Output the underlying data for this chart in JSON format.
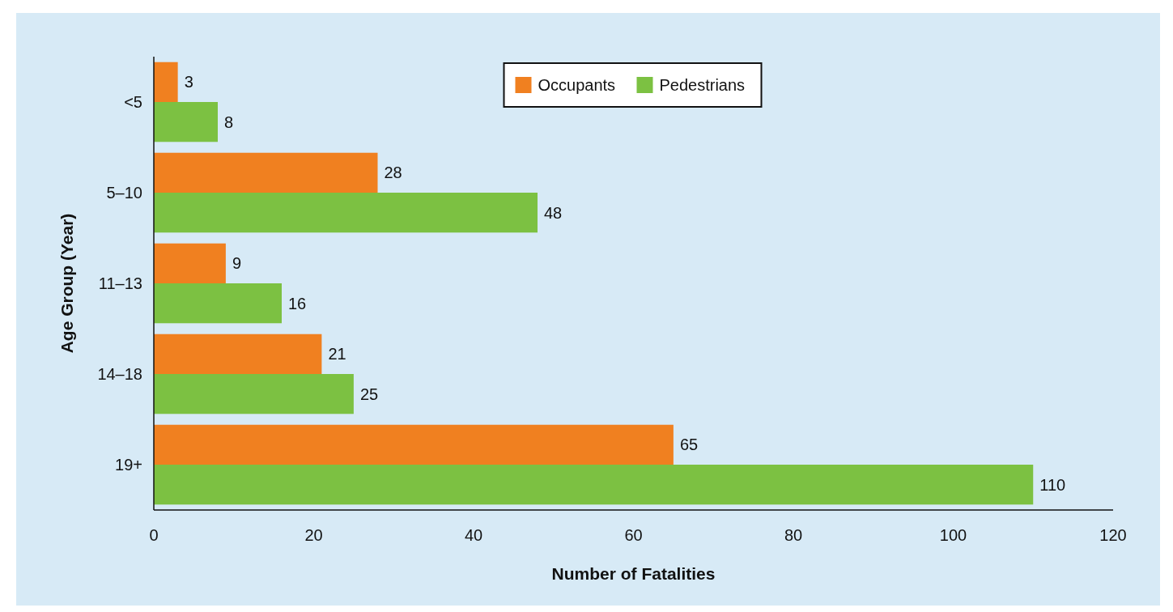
{
  "chart_data": {
    "type": "bar",
    "orientation": "horizontal",
    "xlabel": "Number of Fatalities",
    "ylabel": "Age Group (Year)",
    "categories": [
      "<5",
      "5–10",
      "11–13",
      "14–18",
      "19+"
    ],
    "series": [
      {
        "name": "Occupants",
        "color": "#f08020",
        "values": [
          3,
          28,
          9,
          21,
          65
        ]
      },
      {
        "name": "Pedestrians",
        "color": "#7cc142",
        "values": [
          8,
          48,
          16,
          25,
          110
        ]
      }
    ],
    "xlim": [
      0,
      120
    ],
    "xticks": [
      0,
      20,
      40,
      60,
      80,
      100,
      120
    ],
    "data_labels": true,
    "legend": "top",
    "grid": false
  }
}
